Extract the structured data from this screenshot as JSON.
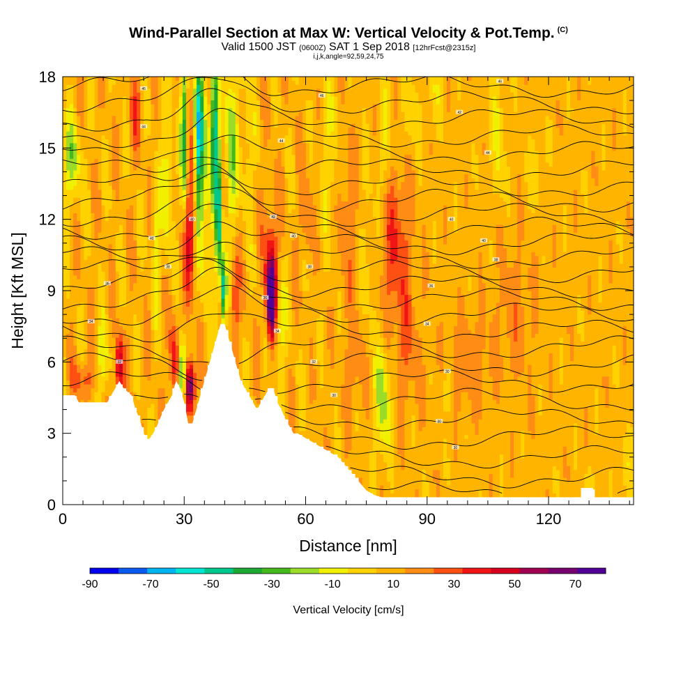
{
  "header": {
    "title": "Wind-Parallel Section at Max W: Vertical Velocity & Pot.Temp.",
    "copyright": "(C)",
    "subtitle_a": "Valid 1500 JST",
    "subtitle_b": "(0600Z)",
    "subtitle_c": "SAT 1 Sep 2018",
    "subtitle_d": "[12hrFcst@2315z]",
    "params": "i,j,k,angle=92,59,24,75"
  },
  "chart_data": {
    "type": "heatmap",
    "xlabel": "Distance [nm]",
    "ylabel": "Height [Kft MSL]",
    "xlim": [
      0,
      141
    ],
    "ylim": [
      0,
      18
    ],
    "x_ticks": [
      0,
      30,
      60,
      90,
      120
    ],
    "y_ticks": [
      0,
      3,
      6,
      9,
      12,
      15,
      18
    ],
    "colorbar": {
      "label": "Vertical Velocity [cm/s]",
      "tick_labels": [
        "-90",
        "-70",
        "-50",
        "-30",
        "-10",
        "10",
        "30",
        "50",
        "70"
      ],
      "tick_values": [
        -90,
        -70,
        -50,
        -30,
        -10,
        10,
        30,
        50,
        70
      ],
      "bounds": [
        -90,
        80
      ],
      "colors": [
        "#0000f0",
        "#0a5af0",
        "#00b4f0",
        "#00e6d2",
        "#00c88c",
        "#1eaa32",
        "#46b91e",
        "#9bdc28",
        "#f0f000",
        "#ffd200",
        "#ffb400",
        "#ff8c14",
        "#ff5014",
        "#f01414",
        "#d7001e",
        "#a00050",
        "#78006e",
        "#500096"
      ]
    },
    "terrain_profile": {
      "x": [
        0,
        3,
        4,
        11,
        12,
        14,
        15,
        17,
        18,
        19,
        20,
        21,
        22,
        23,
        24,
        25,
        26,
        27,
        28,
        29,
        30,
        31,
        32,
        33,
        34,
        35,
        36,
        37,
        38,
        39,
        40,
        41,
        42,
        43,
        44,
        45,
        46,
        47,
        48,
        49,
        50,
        51,
        52,
        53,
        54,
        55,
        56,
        57,
        58,
        59,
        60,
        61,
        62,
        63,
        64,
        65,
        66,
        67,
        68,
        69,
        70,
        71,
        72,
        73,
        74,
        75,
        76,
        77,
        78,
        79,
        80,
        81,
        128,
        128,
        131,
        131,
        141
      ],
      "y": [
        4.6,
        4.6,
        4.3,
        4.3,
        4.6,
        5.2,
        4.9,
        4.6,
        4.0,
        3.6,
        3.0,
        2.7,
        2.9,
        3.2,
        3.6,
        4.0,
        4.3,
        4.6,
        5.2,
        4.9,
        4.3,
        3.4,
        3.4,
        4.0,
        4.6,
        5.2,
        5.8,
        6.4,
        7.0,
        7.6,
        7.6,
        7.0,
        6.4,
        5.8,
        5.2,
        4.9,
        4.6,
        4.3,
        4.0,
        4.3,
        4.6,
        4.9,
        4.9,
        4.3,
        4.0,
        3.6,
        3.3,
        3.0,
        3.0,
        2.9,
        2.8,
        2.7,
        2.6,
        2.5,
        2.4,
        2.3,
        2.2,
        2.1,
        2.0,
        1.8,
        1.6,
        1.4,
        1.2,
        1.0,
        0.8,
        0.6,
        0.5,
        0.4,
        0.35,
        0.3,
        0.3,
        0.3,
        0.3,
        0.7,
        0.7,
        0.3,
        0.3
      ]
    },
    "isentrope_labels": [
      {
        "x": 20,
        "y": 17.5,
        "text": "46"
      },
      {
        "x": 20,
        "y": 15.9,
        "text": "44"
      },
      {
        "x": 64,
        "y": 17.2,
        "text": "46"
      },
      {
        "x": 108,
        "y": 17.8,
        "text": "46"
      },
      {
        "x": 98,
        "y": 16.5,
        "text": "42"
      },
      {
        "x": 54,
        "y": 15.3,
        "text": "44"
      },
      {
        "x": 105,
        "y": 14.8,
        "text": "44"
      },
      {
        "x": 32,
        "y": 12.0,
        "text": "40"
      },
      {
        "x": 52,
        "y": 12.1,
        "text": "42"
      },
      {
        "x": 22,
        "y": 11.2,
        "text": "40"
      },
      {
        "x": 57,
        "y": 11.3,
        "text": "40"
      },
      {
        "x": 96,
        "y": 12.0,
        "text": "40"
      },
      {
        "x": 104,
        "y": 11.1,
        "text": "40"
      },
      {
        "x": 26,
        "y": 10.0,
        "text": "38"
      },
      {
        "x": 61,
        "y": 10.0,
        "text": "38"
      },
      {
        "x": 107,
        "y": 10.3,
        "text": "38"
      },
      {
        "x": 11,
        "y": 9.3,
        "text": "36"
      },
      {
        "x": 50,
        "y": 8.7,
        "text": "36"
      },
      {
        "x": 91,
        "y": 9.2,
        "text": "36"
      },
      {
        "x": 7,
        "y": 7.7,
        "text": "34"
      },
      {
        "x": 53,
        "y": 7.3,
        "text": "34"
      },
      {
        "x": 90,
        "y": 7.6,
        "text": "34"
      },
      {
        "x": 14,
        "y": 6.0,
        "text": "32"
      },
      {
        "x": 62,
        "y": 6.0,
        "text": "32"
      },
      {
        "x": 95,
        "y": 5.6,
        "text": "30"
      },
      {
        "x": 67,
        "y": 4.6,
        "text": "30"
      },
      {
        "x": 93,
        "y": 3.5,
        "text": "30"
      },
      {
        "x": 97,
        "y": 2.4,
        "text": "30"
      }
    ]
  }
}
